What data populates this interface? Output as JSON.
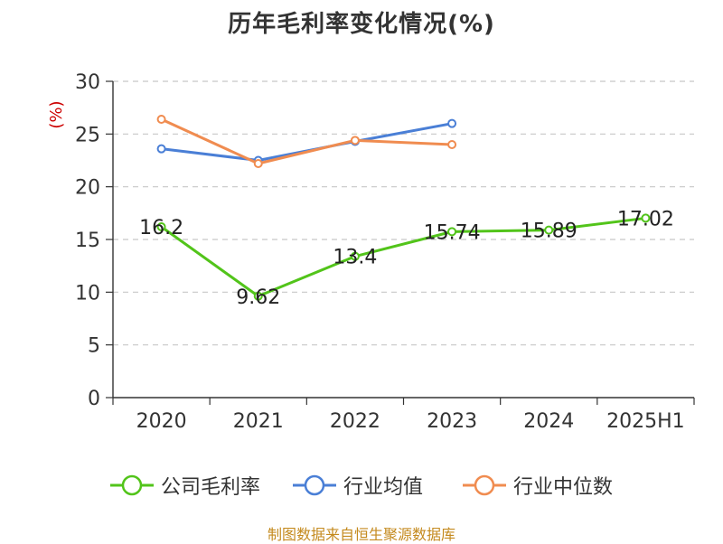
{
  "chart_data": {
    "type": "line",
    "title": "历年毛利率变化情况(%)",
    "ylabel": "(%)",
    "categories": [
      "2020",
      "2021",
      "2022",
      "2023",
      "2024",
      "2025H1"
    ],
    "ylim": [
      0,
      30
    ],
    "yticks": [
      0,
      5,
      10,
      15,
      20,
      25,
      30
    ],
    "grid": true,
    "legend_position": "bottom",
    "series": [
      {
        "name": "公司毛利率",
        "color": "#52c41a",
        "values": [
          16.2,
          9.62,
          13.4,
          15.74,
          15.89,
          17.02
        ],
        "labels": [
          "16.2",
          "9.62",
          "13.4",
          "15.74",
          "15.89",
          "17.02"
        ]
      },
      {
        "name": "行业均值",
        "color": "#4a7fd6",
        "values": [
          23.6,
          22.5,
          24.3,
          26.0,
          null,
          null
        ]
      },
      {
        "name": "行业中位数",
        "color": "#f08c50",
        "values": [
          26.4,
          22.2,
          24.4,
          24.0,
          null,
          null
        ]
      }
    ]
  },
  "source_note": "制图数据来自恒生聚源数据库"
}
